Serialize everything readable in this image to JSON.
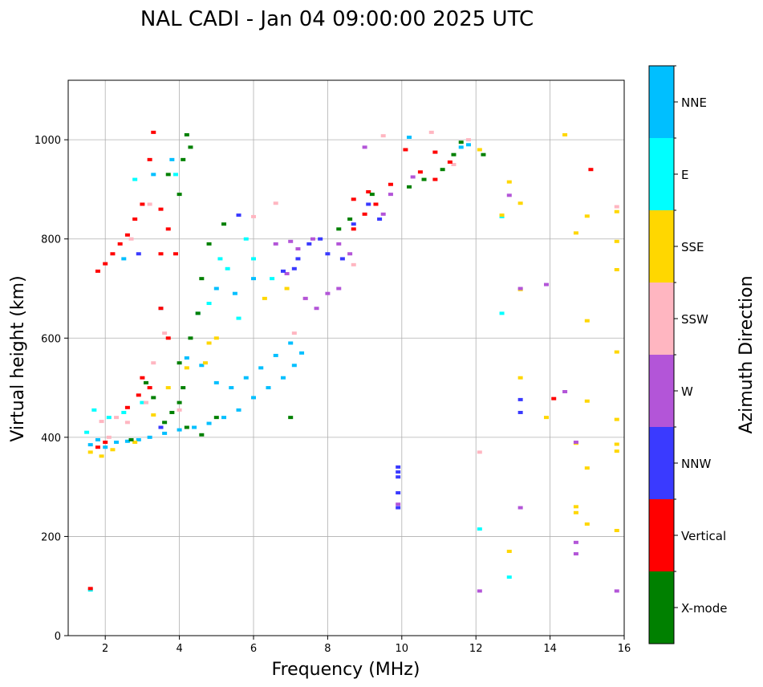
{
  "chart_data": {
    "type": "scatter",
    "title": "NAL CADI - Jan 04 09:00:00 2025 UTC",
    "xlabel": "Frequency (MHz)",
    "ylabel": "Virtual height (km)",
    "xlim": [
      1,
      16
    ],
    "ylim": [
      0,
      1120
    ],
    "grid": true,
    "x_ticks": [
      2,
      4,
      6,
      8,
      10,
      12,
      14,
      16
    ],
    "y_ticks": [
      0,
      200,
      400,
      600,
      800,
      1000
    ],
    "colorbar": {
      "title": "Azimuth Direction",
      "categories": [
        "X-mode",
        "Vertical",
        "NNW",
        "W",
        "SSW",
        "SSE",
        "E",
        "NNE"
      ],
      "colors": [
        "#008000",
        "#ff0000",
        "#3a3aff",
        "#b355d8",
        "#ffb6c1",
        "#ffd700",
        "#00ffff",
        "#00bfff"
      ]
    },
    "series": [
      {
        "name": "NNE",
        "points": [
          [
            1.6,
            385
          ],
          [
            1.8,
            395
          ],
          [
            2.0,
            380
          ],
          [
            2.3,
            390
          ],
          [
            2.6,
            392
          ],
          [
            2.9,
            395
          ],
          [
            3.2,
            400
          ],
          [
            3.6,
            408
          ],
          [
            4.0,
            415
          ],
          [
            4.4,
            420
          ],
          [
            4.8,
            428
          ],
          [
            5.2,
            440
          ],
          [
            5.6,
            455
          ],
          [
            6.0,
            480
          ],
          [
            6.4,
            500
          ],
          [
            6.8,
            520
          ],
          [
            7.1,
            545
          ],
          [
            7.3,
            570
          ],
          [
            4.2,
            560
          ],
          [
            4.6,
            545
          ],
          [
            5.0,
            510
          ],
          [
            5.4,
            500
          ],
          [
            5.8,
            520
          ],
          [
            6.2,
            540
          ],
          [
            6.6,
            565
          ],
          [
            7.0,
            590
          ],
          [
            4.5,
            650
          ],
          [
            5.0,
            700
          ],
          [
            5.5,
            690
          ],
          [
            6.0,
            720
          ],
          [
            3.3,
            930
          ],
          [
            3.8,
            960
          ],
          [
            2.5,
            760
          ],
          [
            10.2,
            1005
          ],
          [
            11.6,
            985
          ],
          [
            11.8,
            990
          ],
          [
            3.5,
            660
          ]
        ]
      },
      {
        "name": "E",
        "points": [
          [
            1.5,
            410
          ],
          [
            1.7,
            455
          ],
          [
            2.1,
            440
          ],
          [
            2.5,
            450
          ],
          [
            3.0,
            470
          ],
          [
            5.1,
            760
          ],
          [
            5.3,
            740
          ],
          [
            5.8,
            800
          ],
          [
            6.0,
            760
          ],
          [
            6.5,
            720
          ],
          [
            4.8,
            670
          ],
          [
            5.6,
            640
          ],
          [
            3.9,
            930
          ],
          [
            2.8,
            920
          ],
          [
            12.7,
            845
          ],
          [
            12.7,
            650
          ],
          [
            12.1,
            215
          ],
          [
            12.9,
            118
          ],
          [
            1.6,
            92
          ]
        ]
      },
      {
        "name": "SSE",
        "points": [
          [
            1.6,
            370
          ],
          [
            1.9,
            362
          ],
          [
            2.2,
            375
          ],
          [
            2.8,
            390
          ],
          [
            3.3,
            445
          ],
          [
            3.7,
            500
          ],
          [
            4.2,
            540
          ],
          [
            4.8,
            590
          ],
          [
            5.0,
            600
          ],
          [
            4.7,
            550
          ],
          [
            6.3,
            680
          ],
          [
            6.9,
            700
          ],
          [
            12.1,
            980
          ],
          [
            12.7,
            848
          ],
          [
            12.9,
            915
          ],
          [
            13.2,
            698
          ],
          [
            13.2,
            520
          ],
          [
            13.2,
            872
          ],
          [
            13.9,
            440
          ],
          [
            14.4,
            1010
          ],
          [
            14.7,
            812
          ],
          [
            15.0,
            846
          ],
          [
            15.0,
            635
          ],
          [
            15.0,
            473
          ],
          [
            15.0,
            338
          ],
          [
            15.0,
            225
          ],
          [
            14.7,
            388
          ],
          [
            14.7,
            260
          ],
          [
            14.7,
            248
          ],
          [
            15.8,
            855
          ],
          [
            15.8,
            795
          ],
          [
            15.8,
            738
          ],
          [
            15.8,
            572
          ],
          [
            15.8,
            436
          ],
          [
            15.8,
            386
          ],
          [
            15.8,
            372
          ],
          [
            15.8,
            212
          ],
          [
            12.9,
            170
          ]
        ]
      },
      {
        "name": "SSW",
        "points": [
          [
            1.9,
            432
          ],
          [
            2.3,
            440
          ],
          [
            2.6,
            430
          ],
          [
            3.1,
            470
          ],
          [
            3.3,
            550
          ],
          [
            3.6,
            610
          ],
          [
            2.7,
            800
          ],
          [
            3.2,
            870
          ],
          [
            6.0,
            845
          ],
          [
            6.6,
            872
          ],
          [
            7.1,
            610
          ],
          [
            7.4,
            680
          ],
          [
            8.7,
            748
          ],
          [
            9.5,
            1008
          ],
          [
            10.8,
            1015
          ],
          [
            11.4,
            950
          ],
          [
            11.8,
            1000
          ],
          [
            12.1,
            370
          ],
          [
            15.8,
            865
          ],
          [
            4.0,
            455
          ],
          [
            2.1,
            400
          ]
        ]
      },
      {
        "name": "W",
        "points": [
          [
            6.6,
            790
          ],
          [
            7.0,
            795
          ],
          [
            7.6,
            800
          ],
          [
            8.3,
            790
          ],
          [
            6.9,
            730
          ],
          [
            7.4,
            680
          ],
          [
            7.7,
            660
          ],
          [
            8.0,
            690
          ],
          [
            8.3,
            700
          ],
          [
            8.6,
            770
          ],
          [
            9.0,
            985
          ],
          [
            9.5,
            850
          ],
          [
            9.7,
            890
          ],
          [
            10.3,
            925
          ],
          [
            12.9,
            888
          ],
          [
            13.2,
            700
          ],
          [
            13.9,
            708
          ],
          [
            14.4,
            492
          ],
          [
            14.7,
            390
          ],
          [
            14.7,
            188
          ],
          [
            14.7,
            165
          ],
          [
            13.2,
            258
          ],
          [
            15.8,
            90
          ],
          [
            12.1,
            90
          ],
          [
            9.9,
            265
          ],
          [
            7.2,
            780
          ]
        ]
      },
      {
        "name": "NNW",
        "points": [
          [
            6.8,
            735
          ],
          [
            7.2,
            760
          ],
          [
            7.5,
            790
          ],
          [
            7.8,
            800
          ],
          [
            8.0,
            770
          ],
          [
            8.4,
            760
          ],
          [
            8.7,
            830
          ],
          [
            9.1,
            870
          ],
          [
            9.4,
            840
          ],
          [
            7.1,
            740
          ],
          [
            9.9,
            340
          ],
          [
            9.9,
            330
          ],
          [
            9.9,
            320
          ],
          [
            9.9,
            288
          ],
          [
            9.9,
            258
          ],
          [
            13.2,
            476
          ],
          [
            13.2,
            450
          ],
          [
            5.6,
            848
          ],
          [
            3.5,
            420
          ],
          [
            2.9,
            770
          ]
        ]
      },
      {
        "name": "Vertical",
        "points": [
          [
            1.8,
            735
          ],
          [
            2.0,
            750
          ],
          [
            2.2,
            770
          ],
          [
            2.4,
            790
          ],
          [
            2.6,
            808
          ],
          [
            2.8,
            840
          ],
          [
            3.0,
            870
          ],
          [
            3.2,
            960
          ],
          [
            3.3,
            1015
          ],
          [
            3.5,
            860
          ],
          [
            3.7,
            820
          ],
          [
            3.9,
            770
          ],
          [
            3.5,
            770
          ],
          [
            3.7,
            600
          ],
          [
            3.5,
            660
          ],
          [
            2.6,
            460
          ],
          [
            2.9,
            485
          ],
          [
            3.2,
            500
          ],
          [
            3.0,
            520
          ],
          [
            8.7,
            880
          ],
          [
            8.7,
            820
          ],
          [
            9.0,
            850
          ],
          [
            9.1,
            895
          ],
          [
            9.3,
            870
          ],
          [
            9.7,
            910
          ],
          [
            10.1,
            980
          ],
          [
            10.5,
            935
          ],
          [
            10.9,
            920
          ],
          [
            11.3,
            955
          ],
          [
            10.9,
            975
          ],
          [
            14.1,
            478
          ],
          [
            15.1,
            940
          ],
          [
            2.0,
            390
          ],
          [
            1.8,
            380
          ],
          [
            1.6,
            95
          ]
        ]
      },
      {
        "name": "X-mode",
        "points": [
          [
            3.6,
            430
          ],
          [
            3.8,
            450
          ],
          [
            4.0,
            470
          ],
          [
            4.1,
            500
          ],
          [
            4.0,
            550
          ],
          [
            4.3,
            600
          ],
          [
            4.5,
            650
          ],
          [
            4.6,
            720
          ],
          [
            4.8,
            790
          ],
          [
            5.2,
            830
          ],
          [
            4.1,
            960
          ],
          [
            4.2,
            1010
          ],
          [
            4.3,
            985
          ],
          [
            4.0,
            890
          ],
          [
            3.7,
            930
          ],
          [
            8.3,
            820
          ],
          [
            8.6,
            840
          ],
          [
            9.2,
            890
          ],
          [
            10.2,
            905
          ],
          [
            10.6,
            920
          ],
          [
            11.1,
            940
          ],
          [
            11.4,
            970
          ],
          [
            11.6,
            995
          ],
          [
            12.2,
            970
          ],
          [
            3.3,
            480
          ],
          [
            3.1,
            510
          ],
          [
            2.7,
            395
          ],
          [
            4.6,
            405
          ],
          [
            5.0,
            440
          ],
          [
            4.2,
            420
          ],
          [
            7.0,
            440
          ]
        ]
      }
    ]
  }
}
